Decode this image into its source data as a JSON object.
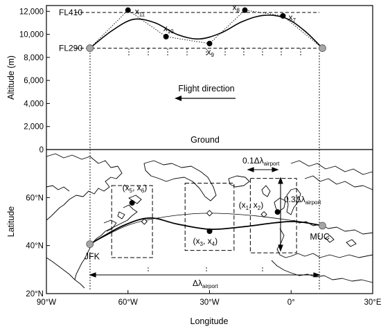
{
  "chart_data": [
    {
      "type": "line",
      "panel": "top",
      "ylabel": "Altitude (m)",
      "ylim": [
        0,
        12500
      ],
      "yticks": [
        "0",
        "2000",
        "4000",
        "6000",
        "8000",
        "10000",
        "12000"
      ],
      "xlim": [
        -90,
        30
      ],
      "grid": false,
      "level_labels": {
        "upper": "FL410",
        "lower": "FL290"
      },
      "flight_direction_label": "Flight direction",
      "ground_label": "Ground",
      "trajectory": {
        "x": [
          -74,
          -66,
          -58,
          -50,
          -42,
          -34,
          -26,
          -18,
          -10,
          -2,
          5,
          11.5
        ],
        "y": [
          8800,
          10300,
          11300,
          11000,
          10000,
          9600,
          10100,
          11100,
          11650,
          11400,
          10300,
          8800
        ]
      },
      "control_points": [
        {
          "name": "x11",
          "x": -60,
          "y": 12100
        },
        {
          "name": "x10",
          "x": -46,
          "y": 9800
        },
        {
          "name": "x9",
          "x": -30,
          "y": 9200
        },
        {
          "name": "x8",
          "x": -17,
          "y": 12100
        },
        {
          "name": "x7",
          "x": -3,
          "y": 11600
        }
      ],
      "endpoints": [
        {
          "x": -74,
          "y": 8800
        },
        {
          "x": 11.5,
          "y": 8800
        }
      ],
      "point_labels": [
        "x",
        "11",
        "x",
        "10",
        "x",
        "9",
        "x",
        "8",
        "x",
        "7"
      ]
    },
    {
      "type": "scatter",
      "panel": "bottom",
      "xlabel": "Longitude",
      "ylabel": "Latitude",
      "xlim": [
        -90,
        30
      ],
      "ylim": [
        20,
        80
      ],
      "xticks": [
        "90°W",
        "60°W",
        "30°W",
        "0°",
        "30°E"
      ],
      "yticks": [
        "20°N",
        "40°N",
        "60°N"
      ],
      "airports": [
        {
          "name": "JFK",
          "lon": -74,
          "lat": 40.6
        },
        {
          "name": "MUC",
          "lon": 11.5,
          "lat": 48.3
        }
      ],
      "great_circle": {
        "lon": [
          -74,
          -60,
          -45,
          -30,
          -15,
          0,
          11.5
        ],
        "lat": [
          40.6,
          48.5,
          52.2,
          53.5,
          52.6,
          50.5,
          48.3
        ]
      },
      "optimized_route": {
        "lon": [
          -74,
          -62,
          -52,
          -42,
          -30,
          -18,
          -6,
          2,
          11.5
        ],
        "lat": [
          40.6,
          48.2,
          51.5,
          49.0,
          46.8,
          47.8,
          49.5,
          50.0,
          48.3
        ]
      },
      "control_points": [
        {
          "label": [
            "(x",
            "5",
            ", x",
            "6",
            ")"
          ],
          "lon": -58.5,
          "lat": 57.8
        },
        {
          "label": [
            "(x",
            "3",
            ", x",
            "4",
            ")"
          ],
          "lon": -30,
          "lat": 46
        },
        {
          "label": [
            "(x",
            "1",
            ", x",
            "2",
            ")"
          ],
          "lon": -5,
          "lat": 54
        }
      ],
      "diamond_markers": [
        {
          "lon": -54,
          "lat": 50
        },
        {
          "lon": -30,
          "lat": 53.5
        },
        {
          "lon": -10,
          "lat": 53
        }
      ],
      "search_boxes": [
        {
          "lon_min": -66,
          "lon_max": -51,
          "lat_min": 35,
          "lat_max": 65
        },
        {
          "lon_min": -39,
          "lon_max": -21,
          "lat_min": 38,
          "lat_max": 66
        },
        {
          "lon_min": -15,
          "lon_max": 2,
          "lat_min": 37,
          "lat_max": 68
        }
      ],
      "annotations": {
        "lon_span": [
          "0.1Δλ",
          "airport"
        ],
        "lat_span": [
          "0.3Δλ",
          "airport"
        ],
        "total_span": [
          "Δλ",
          "airport"
        ]
      }
    }
  ]
}
